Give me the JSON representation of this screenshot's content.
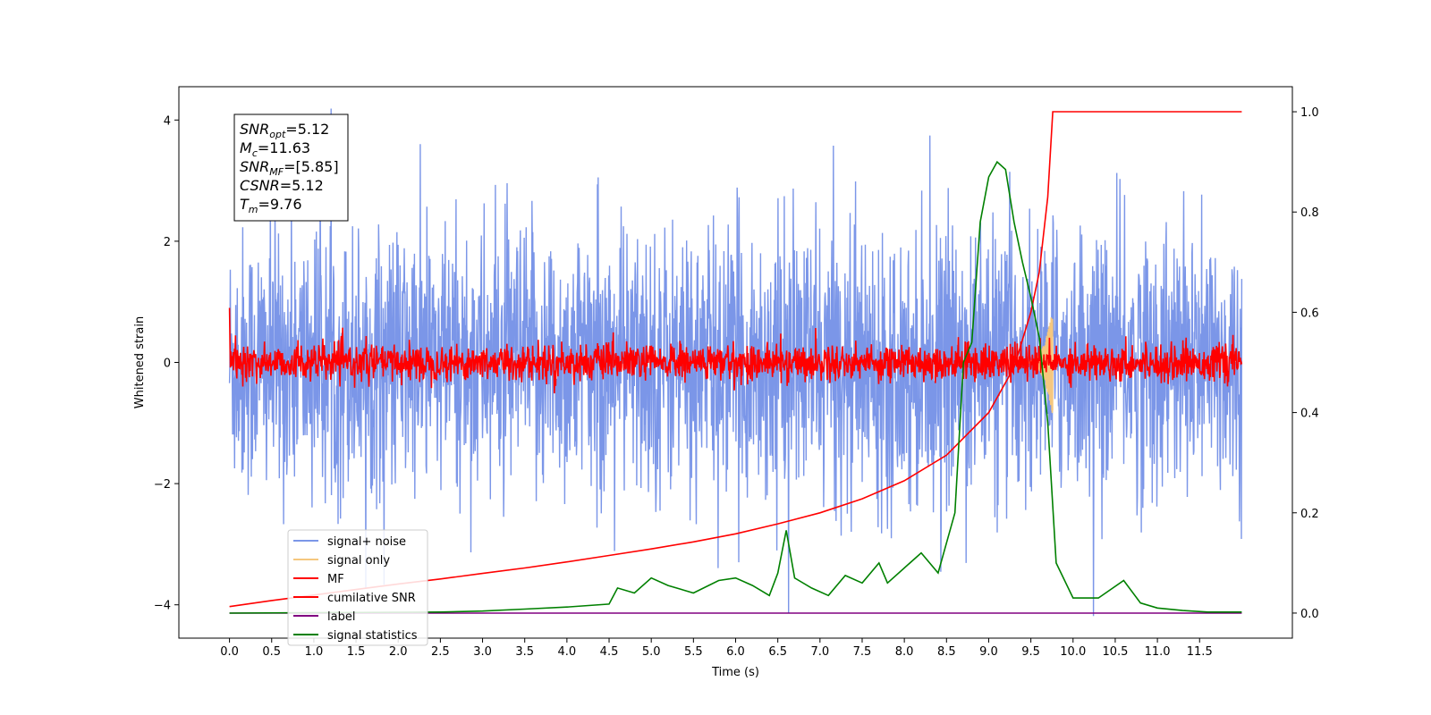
{
  "chart_data": {
    "type": "line",
    "xlabel": "Time (s)",
    "ylabel": "Whitened strain",
    "xlim": [
      -0.6,
      12.6
    ],
    "ylim": [
      -4.55,
      4.55
    ],
    "y2lim": [
      -0.05,
      1.05
    ],
    "x_ticks": [
      "0.0",
      "0.5",
      "1.0",
      "1.5",
      "2.0",
      "2.5",
      "3.0",
      "3.5",
      "4.0",
      "4.5",
      "5.0",
      "5.5",
      "6.0",
      "6.5",
      "7.0",
      "7.5",
      "8.0",
      "8.5",
      "9.0",
      "9.5",
      "10.0",
      "10.5",
      "11.0",
      "11.5"
    ],
    "y_ticks": [
      "-4",
      "-2",
      "0",
      "2",
      "4"
    ],
    "y2_ticks": [
      "0.0",
      "0.2",
      "0.4",
      "0.6",
      "0.8",
      "1.0"
    ],
    "grid": false,
    "legend_position": "lower-left",
    "annotation": {
      "lines": [
        {
          "base": "SNR",
          "sub": "opt",
          "value": "=5.12"
        },
        {
          "base": "M",
          "sub": "c",
          "value": "=11.63"
        },
        {
          "base": "SNR",
          "sub": "MF",
          "value": "=[5.85]"
        },
        {
          "base": "CSNR",
          "sub": "",
          "value": "=5.12"
        },
        {
          "base": "T",
          "sub": "m",
          "value": "=9.76"
        }
      ]
    },
    "series": [
      {
        "name": "signal+ noise",
        "color": "#7b96e8",
        "axis": "left",
        "kind": "noise",
        "amplitude": 1.1,
        "x_range": [
          0.0,
          12.0
        ]
      },
      {
        "name": "signal only",
        "color": "#f5c77e",
        "axis": "left",
        "kind": "chirp",
        "peak_time": 9.76,
        "peak_amplitude": 0.9
      },
      {
        "name": "MF",
        "color": "#ff0000",
        "axis": "left",
        "kind": "noise",
        "amplitude": 0.15,
        "x_range": [
          0.0,
          12.0
        ]
      },
      {
        "name": "cumilative SNR",
        "color": "#ff0000",
        "axis": "right",
        "x": [
          0.0,
          0.5,
          1.0,
          1.5,
          2.0,
          2.5,
          3.0,
          3.5,
          4.0,
          4.5,
          5.0,
          5.5,
          6.0,
          6.5,
          7.0,
          7.5,
          8.0,
          8.5,
          9.0,
          9.3,
          9.5,
          9.6,
          9.7,
          9.76,
          12.0
        ],
        "y": [
          0.013,
          0.025,
          0.036,
          0.047,
          0.058,
          0.068,
          0.079,
          0.09,
          0.102,
          0.115,
          0.128,
          0.142,
          0.158,
          0.178,
          0.2,
          0.228,
          0.264,
          0.315,
          0.4,
          0.49,
          0.6,
          0.68,
          0.83,
          1.0,
          1.0
        ]
      },
      {
        "name": "label",
        "color": "#800080",
        "axis": "right",
        "x": [
          0.0,
          12.0
        ],
        "y": [
          0.0,
          0.0
        ]
      },
      {
        "name": "signal statistics",
        "color": "#008000",
        "axis": "right",
        "x": [
          0.0,
          2.5,
          3.0,
          3.5,
          4.0,
          4.5,
          4.6,
          4.8,
          5.0,
          5.2,
          5.5,
          5.8,
          6.0,
          6.2,
          6.4,
          6.5,
          6.6,
          6.7,
          6.9,
          7.1,
          7.3,
          7.5,
          7.7,
          7.8,
          8.0,
          8.2,
          8.4,
          8.6,
          8.7,
          8.8,
          8.9,
          9.0,
          9.1,
          9.2,
          9.3,
          9.4,
          9.5,
          9.6,
          9.7,
          9.8,
          10.0,
          10.3,
          10.6,
          10.8,
          11.0,
          11.3,
          11.6,
          12.0
        ],
        "y": [
          0.0,
          0.002,
          0.004,
          0.008,
          0.012,
          0.018,
          0.05,
          0.04,
          0.07,
          0.055,
          0.04,
          0.065,
          0.07,
          0.055,
          0.035,
          0.08,
          0.165,
          0.07,
          0.05,
          0.035,
          0.075,
          0.06,
          0.1,
          0.06,
          0.09,
          0.12,
          0.08,
          0.2,
          0.5,
          0.54,
          0.78,
          0.87,
          0.9,
          0.885,
          0.78,
          0.7,
          0.63,
          0.55,
          0.38,
          0.1,
          0.03,
          0.03,
          0.065,
          0.02,
          0.01,
          0.005,
          0.002,
          0.002
        ]
      }
    ]
  }
}
